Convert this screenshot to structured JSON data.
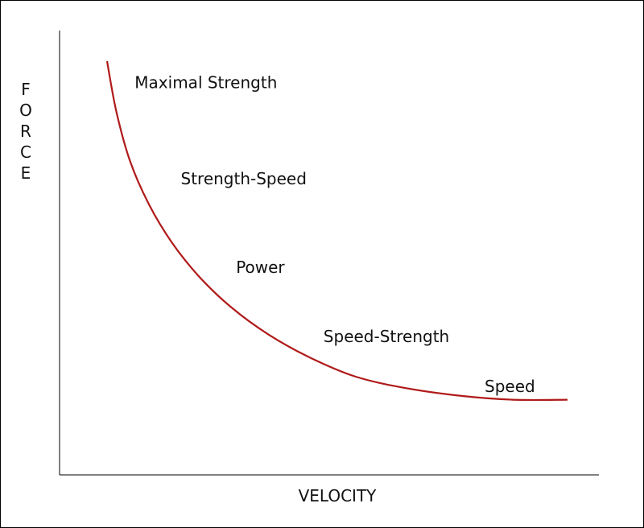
{
  "chart_data": {
    "type": "line",
    "title": "",
    "xlabel": "VELOCITY",
    "ylabel": "FORCE",
    "xlim": [
      0,
      100
    ],
    "ylim": [
      0,
      100
    ],
    "grid": false,
    "series": [
      {
        "color": "#b01a1a",
        "x": [
          0,
          2,
          5,
          9,
          14,
          20,
          27,
          35,
          44,
          54,
          65,
          77,
          88,
          100
        ],
        "y": [
          100,
          87,
          74,
          63,
          53,
          44,
          36,
          29,
          23,
          18,
          15,
          13,
          12,
          12
        ]
      }
    ],
    "annotations": [
      {
        "text": "Maximal Strength",
        "x": 6,
        "y": 93
      },
      {
        "text": "Strength-Speed",
        "x": 16,
        "y": 68
      },
      {
        "text": "Power",
        "x": 28,
        "y": 45
      },
      {
        "text": "Speed-Strength",
        "x": 47,
        "y": 27
      },
      {
        "text": "Speed",
        "x": 82,
        "y": 14
      }
    ]
  }
}
